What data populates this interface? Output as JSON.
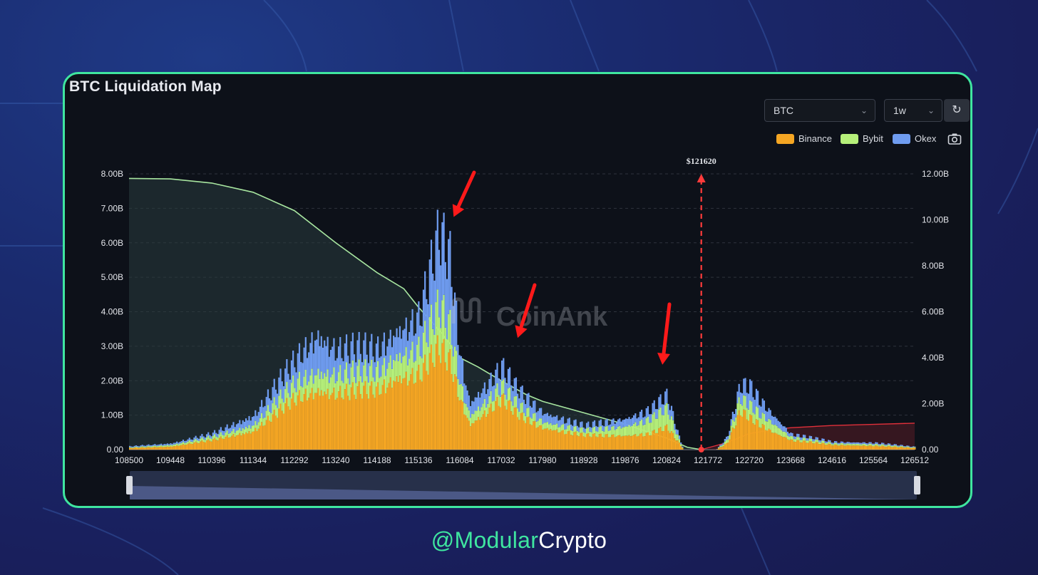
{
  "title": "BTC Liquidation Map",
  "controls": {
    "symbol_select": "BTC",
    "interval_select": "1w"
  },
  "legend": [
    {
      "name": "Binance",
      "color": "#f5a623"
    },
    {
      "name": "Bybit",
      "color": "#b6f07a"
    },
    {
      "name": "Okex",
      "color": "#6f9cf0"
    }
  ],
  "watermark": "CoinAnk",
  "credit": {
    "prefix": "@Modular",
    "suffix": "Crypto"
  },
  "chart_data": {
    "type": "bar",
    "stacked": true,
    "x_range": [
      108500,
      126512
    ],
    "x_ticks": [
      "108500",
      "109448",
      "110396",
      "111344",
      "112292",
      "113240",
      "114188",
      "115136",
      "116084",
      "117032",
      "117980",
      "118928",
      "119876",
      "120824",
      "121772",
      "122720",
      "123668",
      "124616",
      "125564",
      "126512"
    ],
    "y_left_ticks": [
      "0.00",
      "1.00B",
      "2.00B",
      "3.00B",
      "4.00B",
      "5.00B",
      "6.00B",
      "7.00B",
      "8.00B"
    ],
    "y_left_range": [
      0,
      8
    ],
    "y_right_ticks": [
      "0.00",
      "2.00B",
      "4.00B",
      "6.00B",
      "8.00B",
      "10.00B",
      "12.00B"
    ],
    "y_right_range": [
      0,
      12
    ],
    "current_price": {
      "value": 121620,
      "label": "$121620"
    },
    "series": [
      {
        "name": "Binance",
        "color": "#f5a623",
        "points": [
          [
            108500,
            0.05
          ],
          [
            109448,
            0.1
          ],
          [
            110396,
            0.3
          ],
          [
            111344,
            0.6
          ],
          [
            112292,
            1.6
          ],
          [
            112800,
            1.9
          ],
          [
            113240,
            1.8
          ],
          [
            114188,
            1.9
          ],
          [
            114600,
            2.3
          ],
          [
            115136,
            2.4
          ],
          [
            115600,
            3.2
          ],
          [
            115850,
            2.8
          ],
          [
            116084,
            1.6
          ],
          [
            116300,
            0.8
          ],
          [
            117032,
            1.6
          ],
          [
            117400,
            1.1
          ],
          [
            117980,
            0.7
          ],
          [
            118928,
            0.45
          ],
          [
            119876,
            0.45
          ],
          [
            120400,
            0.5
          ],
          [
            120824,
            0.7
          ],
          [
            121100,
            0.2
          ],
          [
            121200,
            0
          ],
          [
            121950,
            0
          ],
          [
            122200,
            0.2
          ],
          [
            122500,
            1.2
          ],
          [
            122720,
            1.0
          ],
          [
            123200,
            0.6
          ],
          [
            123668,
            0.3
          ],
          [
            124616,
            0.15
          ],
          [
            125564,
            0.12
          ],
          [
            126512,
            0.05
          ]
        ]
      },
      {
        "name": "Bybit",
        "color": "#b6f07a",
        "points": [
          [
            108500,
            0.02
          ],
          [
            109448,
            0.05
          ],
          [
            110396,
            0.1
          ],
          [
            111344,
            0.2
          ],
          [
            112292,
            0.5
          ],
          [
            112800,
            0.6
          ],
          [
            113240,
            0.6
          ],
          [
            114188,
            0.6
          ],
          [
            114600,
            0.7
          ],
          [
            115136,
            0.8
          ],
          [
            115600,
            1.3
          ],
          [
            115850,
            1.1
          ],
          [
            116084,
            0.5
          ],
          [
            116300,
            0.3
          ],
          [
            117032,
            0.4
          ],
          [
            117400,
            0.3
          ],
          [
            117980,
            0.2
          ],
          [
            118928,
            0.15
          ],
          [
            119876,
            0.3
          ],
          [
            120400,
            0.45
          ],
          [
            120824,
            0.6
          ],
          [
            121100,
            0.1
          ],
          [
            121200,
            0
          ],
          [
            121950,
            0
          ],
          [
            122200,
            0.1
          ],
          [
            122500,
            0.4
          ],
          [
            122720,
            0.4
          ],
          [
            123200,
            0.3
          ],
          [
            123668,
            0.1
          ],
          [
            124616,
            0.05
          ],
          [
            125564,
            0.05
          ],
          [
            126512,
            0.02
          ]
        ]
      },
      {
        "name": "Okex",
        "color": "#6f9cf0",
        "points": [
          [
            108500,
            0.03
          ],
          [
            109448,
            0.05
          ],
          [
            110396,
            0.1
          ],
          [
            111344,
            0.3
          ],
          [
            112292,
            0.7
          ],
          [
            112800,
            1.2
          ],
          [
            113240,
            0.8
          ],
          [
            114188,
            0.7
          ],
          [
            114600,
            0.8
          ],
          [
            115136,
            1.0
          ],
          [
            115600,
            2.3
          ],
          [
            115850,
            2.2
          ],
          [
            116084,
            0.9
          ],
          [
            116300,
            0.4
          ],
          [
            117032,
            0.6
          ],
          [
            117400,
            0.5
          ],
          [
            117980,
            0.3
          ],
          [
            118928,
            0.15
          ],
          [
            119876,
            0.25
          ],
          [
            120400,
            0.3
          ],
          [
            120824,
            0.4
          ],
          [
            121100,
            0.1
          ],
          [
            121200,
            0
          ],
          [
            121950,
            0
          ],
          [
            122200,
            0.1
          ],
          [
            122500,
            0.4
          ],
          [
            122720,
            0.6
          ],
          [
            123200,
            0.3
          ],
          [
            123668,
            0.1
          ],
          [
            124616,
            0.05
          ],
          [
            125564,
            0.05
          ],
          [
            126512,
            0.02
          ]
        ]
      }
    ],
    "cumulative_short": {
      "color": "#a8e6a0",
      "axis": "right",
      "points": [
        [
          108500,
          11.8
        ],
        [
          109448,
          11.78
        ],
        [
          110396,
          11.6
        ],
        [
          111344,
          11.2
        ],
        [
          112292,
          10.4
        ],
        [
          113240,
          9.0
        ],
        [
          114188,
          7.7
        ],
        [
          114800,
          7.0
        ],
        [
          115136,
          6.2
        ],
        [
          115700,
          5.0
        ],
        [
          116084,
          4.0
        ],
        [
          116500,
          3.6
        ],
        [
          117032,
          3.0
        ],
        [
          117600,
          2.4
        ],
        [
          117980,
          2.1
        ],
        [
          118928,
          1.6
        ],
        [
          119876,
          1.1
        ],
        [
          120824,
          0.5
        ],
        [
          121300,
          0.1
        ],
        [
          121620,
          0
        ]
      ]
    },
    "cumulative_long": {
      "color": "#e0303a",
      "axis": "right",
      "points": [
        [
          121620,
          0
        ],
        [
          122200,
          0.3
        ],
        [
          122720,
          0.7
        ],
        [
          123200,
          0.85
        ],
        [
          123668,
          0.95
        ],
        [
          124616,
          1.05
        ],
        [
          125564,
          1.1
        ],
        [
          126512,
          1.15
        ]
      ]
    },
    "grid": true
  }
}
